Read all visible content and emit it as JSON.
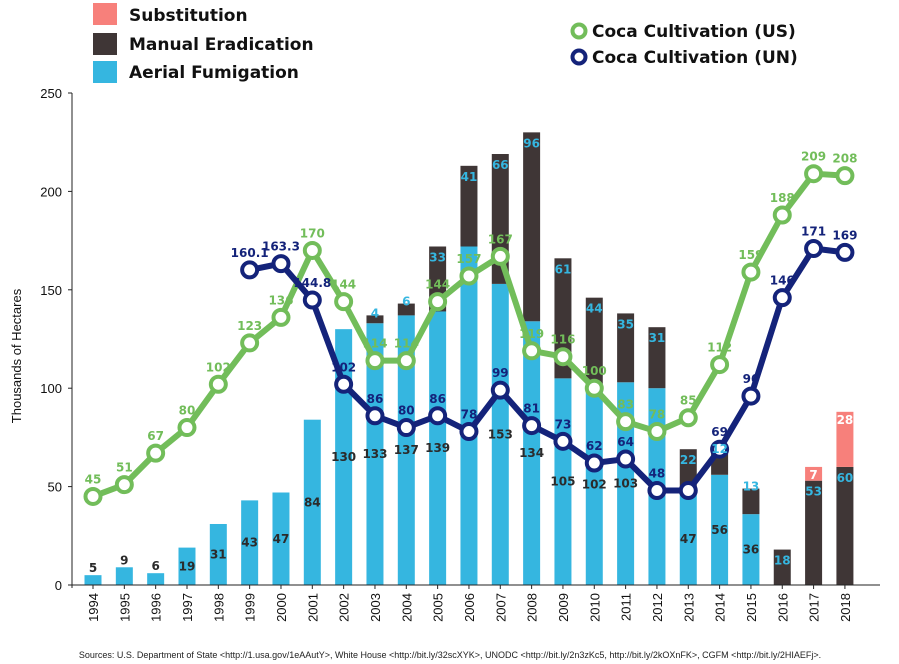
{
  "legend": {
    "substitution": "Substitution",
    "manual": "Manual Eradication",
    "aerial": "Aerial Fumigation",
    "us": "Coca Cultivation (US)",
    "un": "Coca Cultivation (UN)"
  },
  "ylabel": "Thousands of Hectares",
  "source": "Sources: U.S. Department of State <http://1.usa.gov/1eAAutY>, White House <http://bit.ly/32scXYK>, UNODC <http://bit.ly/2n3zKc5, http://bit.ly/2kOXnFK>, CGFM <http://bit.ly/2HIAEFj>.",
  "colors": {
    "aerial": "#35b6e0",
    "manual": "#3f3636",
    "substitution": "#f7807b",
    "us": "#72bd5a",
    "un": "#14237a"
  },
  "chart_data": {
    "type": "bar",
    "stacked": true,
    "ylim": [
      0,
      250
    ],
    "yticks": [
      0,
      50,
      100,
      150,
      200,
      250
    ],
    "categories": [
      "1994",
      "1995",
      "1996",
      "1997",
      "1998",
      "1999",
      "2000",
      "2001",
      "2002",
      "2003",
      "2004",
      "2005",
      "2006",
      "2007",
      "2008",
      "2009",
      "2010",
      "2011",
      "2012",
      "2013",
      "2014",
      "2015",
      "2016",
      "2017",
      "2018"
    ],
    "series": [
      {
        "name": "Aerial Fumigation",
        "kind": "bar",
        "values": [
          5,
          9,
          6,
          19,
          31,
          43,
          47,
          84,
          130,
          133,
          137,
          139,
          172,
          153,
          134,
          105,
          102,
          103,
          100,
          47,
          56,
          36,
          0,
          0,
          0
        ]
      },
      {
        "name": "Manual Eradication",
        "kind": "bar",
        "values": [
          0,
          0,
          0,
          0,
          0,
          0,
          0,
          0,
          0,
          4,
          6,
          33,
          41,
          66,
          96,
          61,
          44,
          35,
          31,
          22,
          12,
          13,
          18,
          53,
          60
        ]
      },
      {
        "name": "Substitution",
        "kind": "bar",
        "values": [
          0,
          0,
          0,
          0,
          0,
          0,
          0,
          0,
          0,
          0,
          0,
          0,
          0,
          0,
          0,
          0,
          0,
          0,
          0,
          0,
          0,
          0,
          0,
          7,
          28
        ]
      },
      {
        "name": "Coca Cultivation (US)",
        "kind": "line",
        "values": [
          45,
          51,
          67,
          80,
          102,
          123,
          136,
          170,
          144,
          114,
          114,
          144,
          157,
          167,
          119,
          116,
          100,
          83,
          78,
          85,
          112,
          159,
          188,
          209,
          208
        ]
      },
      {
        "name": "Coca Cultivation (UN)",
        "kind": "line",
        "values": [
          null,
          null,
          null,
          null,
          null,
          160.1,
          163.3,
          144.8,
          102,
          86,
          80,
          86,
          78,
          99,
          81,
          73,
          62,
          64,
          48,
          48,
          69,
          96,
          146,
          171,
          169
        ]
      }
    ],
    "bar_labels": {
      "aerial": [
        "5",
        "9",
        "6",
        "19",
        "31",
        "43",
        "47",
        "84",
        "130",
        "133",
        "137",
        "139",
        "",
        "153",
        "134",
        "105",
        "102",
        "103",
        "",
        "47",
        "56",
        "36",
        "",
        "",
        ""
      ],
      "manual": [
        "",
        "",
        "",
        "",
        "",
        "",
        "",
        "",
        "",
        "4",
        "6",
        "33",
        "41",
        "66",
        "96",
        "61",
        "44",
        "35",
        "31",
        "22",
        "12",
        "13",
        "18",
        "53",
        "60"
      ],
      "substitution": [
        "",
        "",
        "",
        "",
        "",
        "",
        "",
        "",
        "",
        "",
        "",
        "",
        "",
        "",
        "",
        "",
        "",
        "",
        "",
        "",
        "",
        "",
        "",
        "7",
        "28"
      ]
    },
    "line_labels": {
      "us": [
        "45",
        "51",
        "67",
        "80",
        "102",
        "123",
        "136",
        "170",
        "144",
        "114",
        "114",
        "144",
        "157",
        "167",
        "119",
        "116",
        "100",
        "83",
        "78",
        "85",
        "112",
        "159",
        "188",
        "209",
        "208"
      ],
      "un": [
        "",
        "",
        "",
        "",
        "",
        "160.1",
        "163.3",
        "144.8",
        "102",
        "86",
        "80",
        "86",
        "78",
        "99",
        "81",
        "73",
        "62",
        "64",
        "48",
        "",
        "69",
        "96",
        "146",
        "171",
        "169"
      ]
    }
  }
}
